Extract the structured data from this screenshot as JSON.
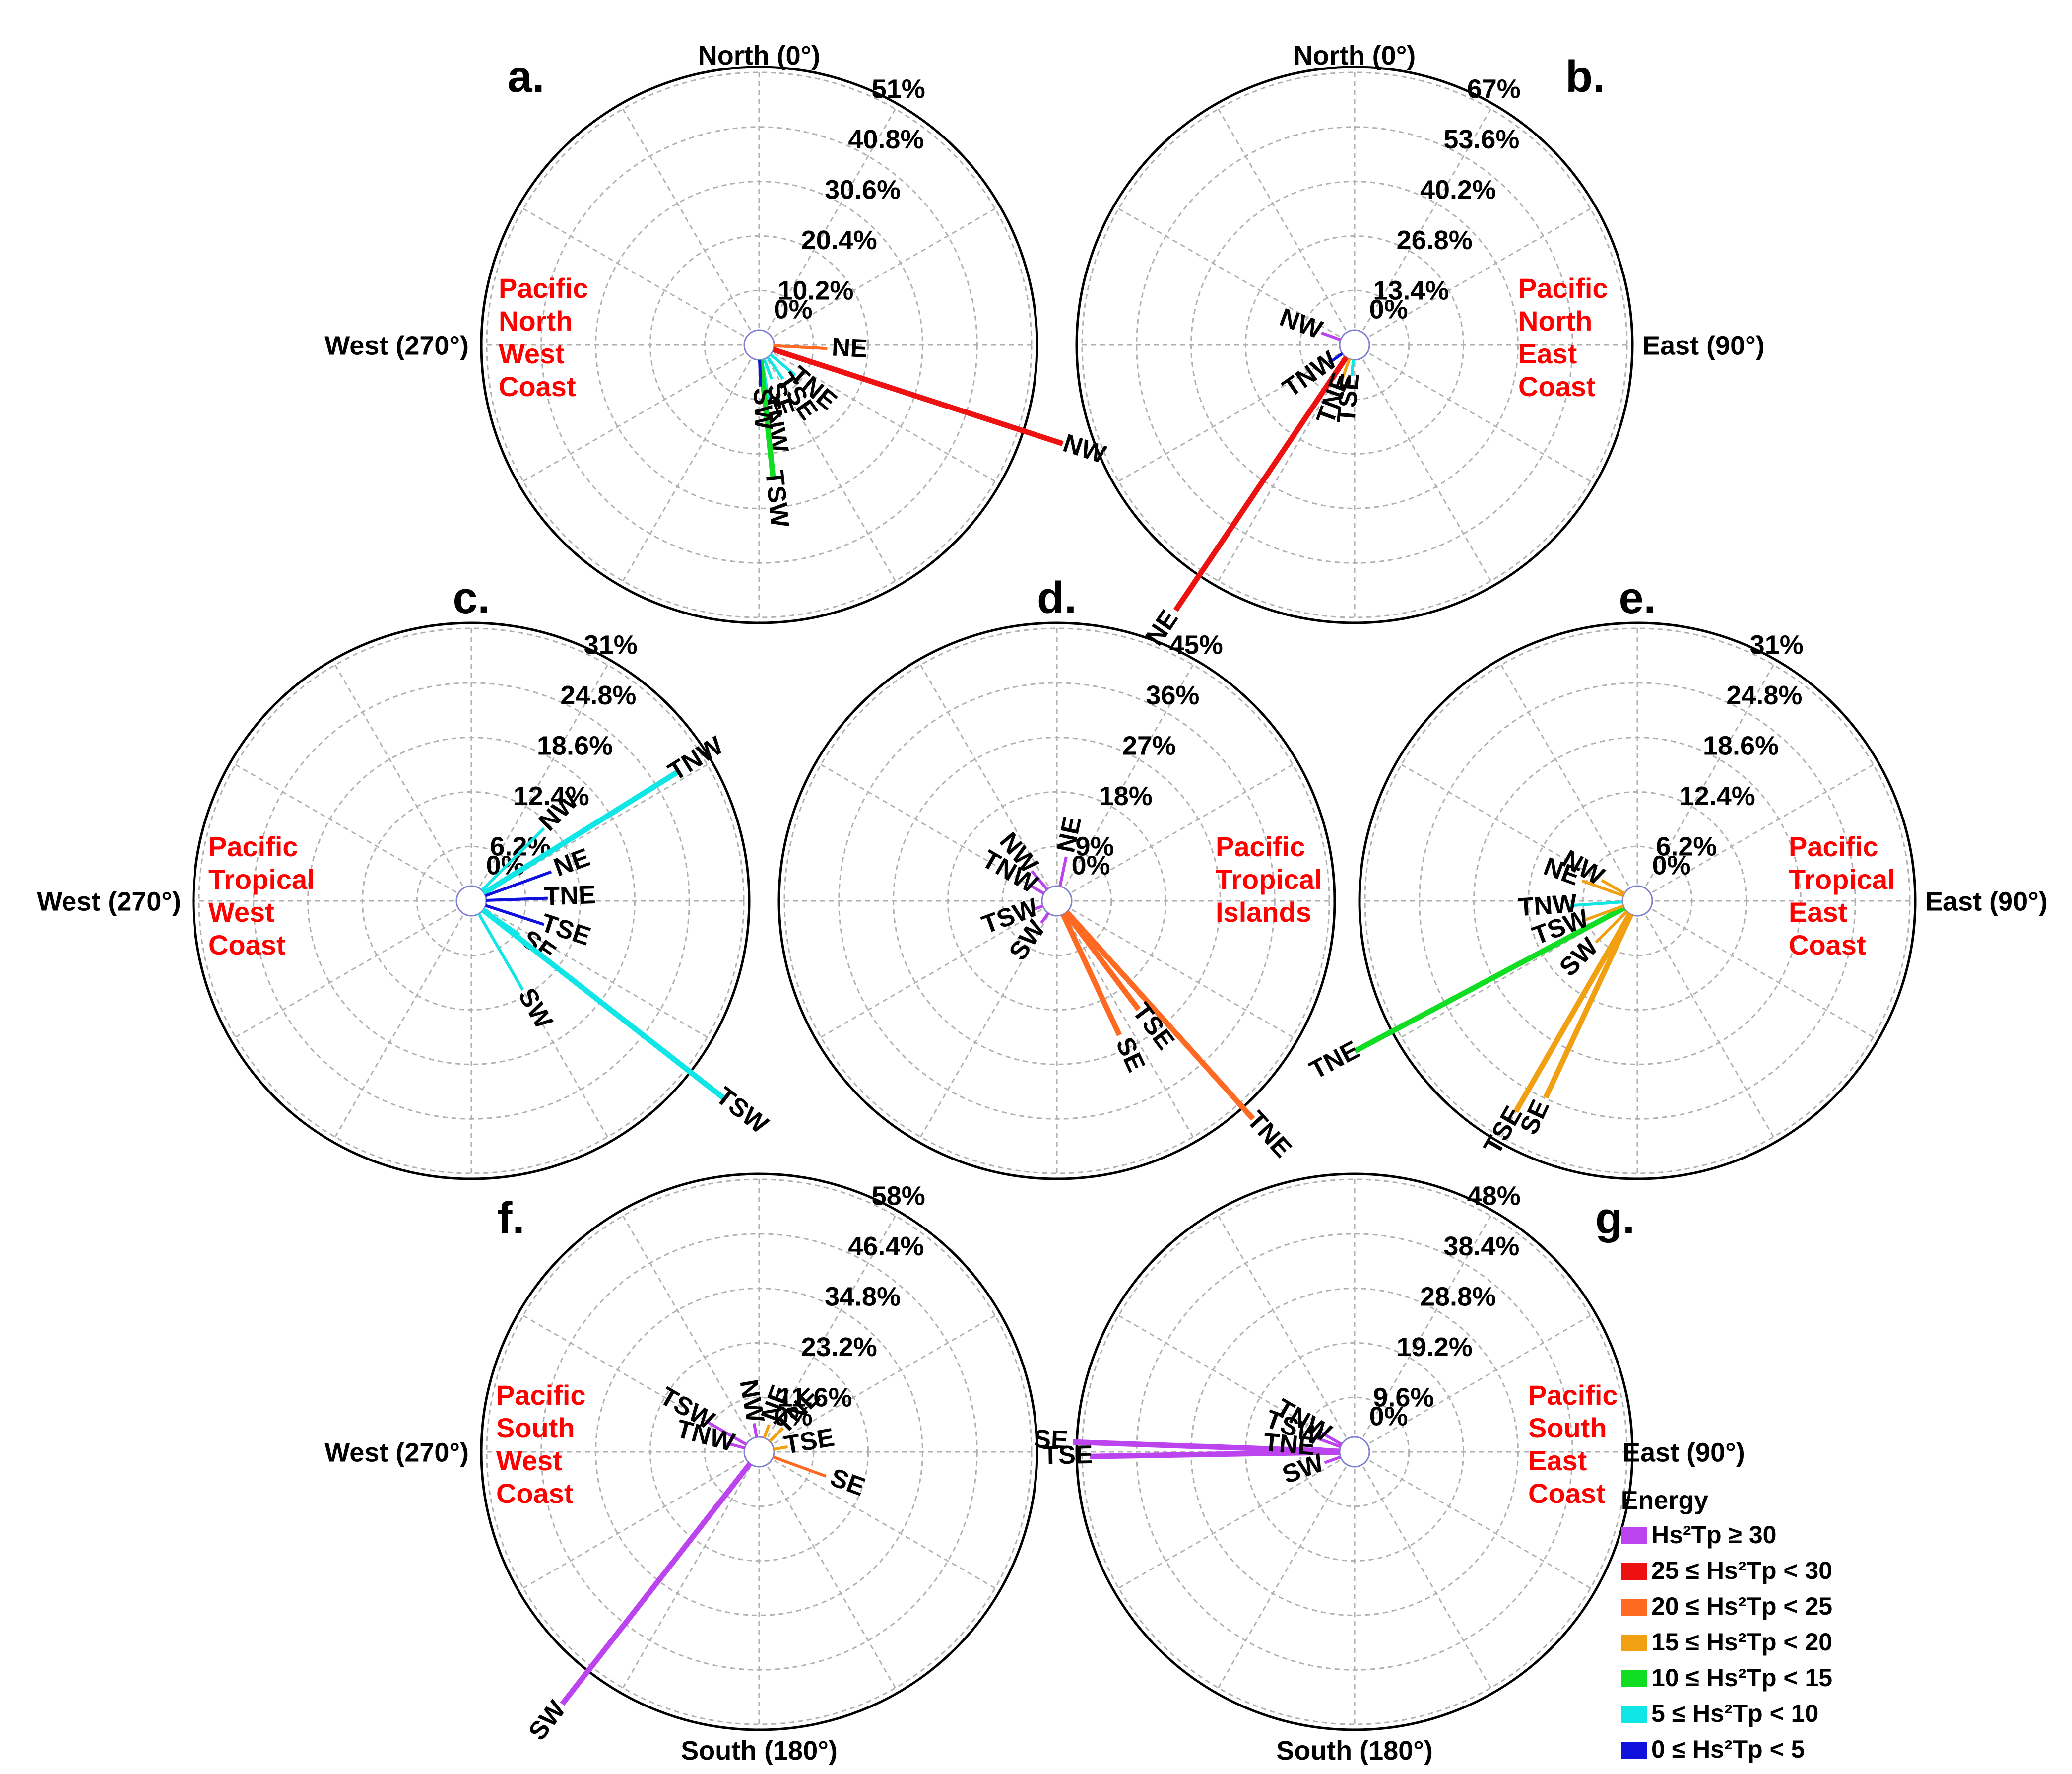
{
  "chart_data": {
    "type": "polar-rose",
    "energy_legend": {
      "title": "Energy",
      "classes": [
        {
          "label": "Hs²Tp ≥ 30",
          "color": "#bb44ee"
        },
        {
          "label": "25 ≤ Hs²Tp < 30",
          "color": "#ee1111"
        },
        {
          "label": "20 ≤ Hs²Tp < 25",
          "color": "#ff6a22"
        },
        {
          "label": "15 ≤ Hs²Tp < 20",
          "color": "#f0a010"
        },
        {
          "label": "10 ≤ Hs²Tp < 15",
          "color": "#11dd22"
        },
        {
          "label": "5 ≤ Hs²Tp < 10",
          "color": "#11e6e6"
        },
        {
          "label": "0 ≤ Hs²Tp < 5",
          "color": "#1111dd"
        }
      ]
    },
    "panels": [
      {
        "id": "a",
        "letter": "a.",
        "region": [
          "Pacific",
          "North",
          "West",
          "Coast"
        ],
        "rmax": 51,
        "ring_labels": [
          "0%",
          "10.2%",
          "20.4%",
          "30.6%",
          "40.8%",
          "51%"
        ],
        "compass": {
          "north": "North (0°)",
          "west": "West (270°)"
        },
        "bars": [
          {
            "label": "NW",
            "angle": 108,
            "value": 57,
            "color": "#ee1111"
          },
          {
            "label": "NE",
            "angle": 93,
            "value": 10,
            "color": "#ff6a22"
          },
          {
            "label": "TNE",
            "angle": 130,
            "value": 6,
            "color": "#11e6e6"
          },
          {
            "label": "TSE",
            "angle": 145,
            "value": 5,
            "color": "#11e6e6"
          },
          {
            "label": "SE",
            "angle": 160,
            "value": 4,
            "color": "#11e6e6"
          },
          {
            "label": "TNW",
            "angle": 170,
            "value": 8,
            "color": "#11e6e6"
          },
          {
            "label": "TSW",
            "angle": 174,
            "value": 22,
            "color": "#11dd22"
          },
          {
            "label": "SW",
            "angle": 178,
            "value": 5,
            "color": "#1111dd"
          }
        ]
      },
      {
        "id": "b",
        "letter": "b.",
        "region": [
          "Pacific",
          "North",
          "East",
          "Coast"
        ],
        "rmax": 67,
        "ring_labels": [
          "0%",
          "13.4%",
          "26.8%",
          "40.2%",
          "53.6%",
          "67%"
        ],
        "compass": {
          "north": "North (0°)",
          "east": "East (90°)"
        },
        "bars": [
          {
            "label": "NE",
            "angle": 214,
            "value": 78,
            "color": "#ee1111"
          },
          {
            "label": "NW",
            "angle": 290,
            "value": 5,
            "color": "#bb44ee"
          },
          {
            "label": "TNW",
            "angle": 235,
            "value": 4,
            "color": "#1111dd"
          },
          {
            "label": "TNE",
            "angle": 200,
            "value": 5,
            "color": "#f0a010"
          },
          {
            "label": "TSE",
            "angle": 185,
            "value": 4,
            "color": "#11e6e6"
          }
        ]
      },
      {
        "id": "c",
        "letter": "c.",
        "region": [
          "Pacific",
          "Tropical",
          "West",
          "Coast"
        ],
        "rmax": 31,
        "ring_labels": [
          "0%",
          "6.2%",
          "12.4%",
          "18.6%",
          "24.8%",
          "31%"
        ],
        "compass": {
          "west": "West (270°)"
        },
        "bars": [
          {
            "label": "TNW",
            "angle": 58,
            "value": 26,
            "color": "#11e6e6"
          },
          {
            "label": "NW",
            "angle": 45,
            "value": 10,
            "color": "#11e6e6"
          },
          {
            "label": "NE",
            "angle": 70,
            "value": 8,
            "color": "#1111dd"
          },
          {
            "label": "TNE",
            "angle": 88,
            "value": 7,
            "color": "#1111dd"
          },
          {
            "label": "TSE",
            "angle": 108,
            "value": 7,
            "color": "#1111dd"
          },
          {
            "label": "SE",
            "angle": 125,
            "value": 5,
            "color": "#11e6e6"
          },
          {
            "label": "SW",
            "angle": 150,
            "value": 10,
            "color": "#11e6e6"
          },
          {
            "label": "TSW",
            "angle": 128,
            "value": 35,
            "color": "#11e6e6"
          }
        ]
      },
      {
        "id": "d",
        "letter": "d.",
        "region": [
          "Pacific",
          "Tropical",
          "Islands"
        ],
        "rmax": 45,
        "ring_labels": [
          "0%",
          "9%",
          "18%",
          "27%",
          "36%",
          "45%"
        ],
        "compass": {},
        "bars": [
          {
            "label": "TNE",
            "angle": 138,
            "value": 46,
            "color": "#ff6a22"
          },
          {
            "label": "TSE",
            "angle": 143,
            "value": 20,
            "color": "#ff6a22"
          },
          {
            "label": "SE",
            "angle": 155,
            "value": 22,
            "color": "#ff6a22"
          },
          {
            "label": "NE",
            "angle": 12,
            "value": 5,
            "color": "#bb44ee"
          },
          {
            "label": "NW",
            "angle": 320,
            "value": 4,
            "color": "#bb44ee"
          },
          {
            "label": "TNW",
            "angle": 300,
            "value": 3,
            "color": "#bb44ee"
          },
          {
            "label": "TSW",
            "angle": 250,
            "value": 2,
            "color": "#bb44ee"
          },
          {
            "label": "SW",
            "angle": 215,
            "value": 2,
            "color": "#bb44ee"
          }
        ]
      },
      {
        "id": "e",
        "letter": "e.",
        "region": [
          "Pacific",
          "Tropical",
          "East",
          "Coast"
        ],
        "rmax": 31,
        "ring_labels": [
          "0%",
          "6.2%",
          "12.4%",
          "18.6%",
          "24.8%",
          "31%"
        ],
        "compass": {
          "east": "East (90°)"
        },
        "bars": [
          {
            "label": "TNE",
            "angle": 242,
            "value": 35,
            "color": "#11dd22"
          },
          {
            "label": "TSE",
            "angle": 210,
            "value": 26,
            "color": "#f0a010"
          },
          {
            "label": "SE",
            "angle": 205,
            "value": 23,
            "color": "#f0a010"
          },
          {
            "label": "SW",
            "angle": 225,
            "value": 5,
            "color": "#f0a010"
          },
          {
            "label": "TSW",
            "angle": 250,
            "value": 5,
            "color": "#f0a010"
          },
          {
            "label": "TNW",
            "angle": 266,
            "value": 6,
            "color": "#11e6e6"
          },
          {
            "label": "NE",
            "angle": 290,
            "value": 5,
            "color": "#f0a010"
          },
          {
            "label": "NW",
            "angle": 300,
            "value": 3,
            "color": "#f0a010"
          }
        ]
      },
      {
        "id": "f",
        "letter": "f.",
        "region": [
          "Pacific",
          "South",
          "West",
          "Coast"
        ],
        "rmax": 58,
        "ring_labels": [
          "0%",
          "11.6%",
          "23.2%",
          "34.8%",
          "46.4%",
          "58%"
        ],
        "compass": {
          "west": "West (270°)",
          "south": "South (180°)"
        },
        "bars": [
          {
            "label": "SW",
            "angle": 218,
            "value": 65,
            "color": "#bb44ee"
          },
          {
            "label": "TSW",
            "angle": 300,
            "value": 10,
            "color": "#bb44ee"
          },
          {
            "label": "TNW",
            "angle": 285,
            "value": 4,
            "color": "#bb44ee"
          },
          {
            "label": "NW",
            "angle": 350,
            "value": 3,
            "color": "#bb44ee"
          },
          {
            "label": "NE",
            "angle": 20,
            "value": 3,
            "color": "#f0a010"
          },
          {
            "label": "TNE",
            "angle": 45,
            "value": 4,
            "color": "#f0a010"
          },
          {
            "label": "TSE",
            "angle": 80,
            "value": 3,
            "color": "#f0a010"
          },
          {
            "label": "SE",
            "angle": 110,
            "value": 12,
            "color": "#ff6a22"
          }
        ]
      },
      {
        "id": "g",
        "letter": "g.",
        "region": [
          "Pacific",
          "South",
          "East",
          "Coast"
        ],
        "rmax": 48,
        "ring_labels": [
          "0%",
          "9.6%",
          "19.2%",
          "28.8%",
          "38.4%",
          "48%"
        ],
        "compass": {
          "east": "East (90°)",
          "south": "South (180°)"
        },
        "bars": [
          {
            "label": "SE",
            "angle": 272,
            "value": 47,
            "color": "#bb44ee"
          },
          {
            "label": "TSE",
            "angle": 269,
            "value": 44,
            "color": "#bb44ee"
          },
          {
            "label": "TNE",
            "angle": 275,
            "value": 5,
            "color": "#bb44ee"
          },
          {
            "label": "TSW",
            "angle": 290,
            "value": 5,
            "color": "#bb44ee"
          },
          {
            "label": "TNW",
            "angle": 300,
            "value": 4,
            "color": "#bb44ee"
          },
          {
            "label": "SW",
            "angle": 250,
            "value": 3,
            "color": "#bb44ee"
          }
        ]
      }
    ]
  }
}
